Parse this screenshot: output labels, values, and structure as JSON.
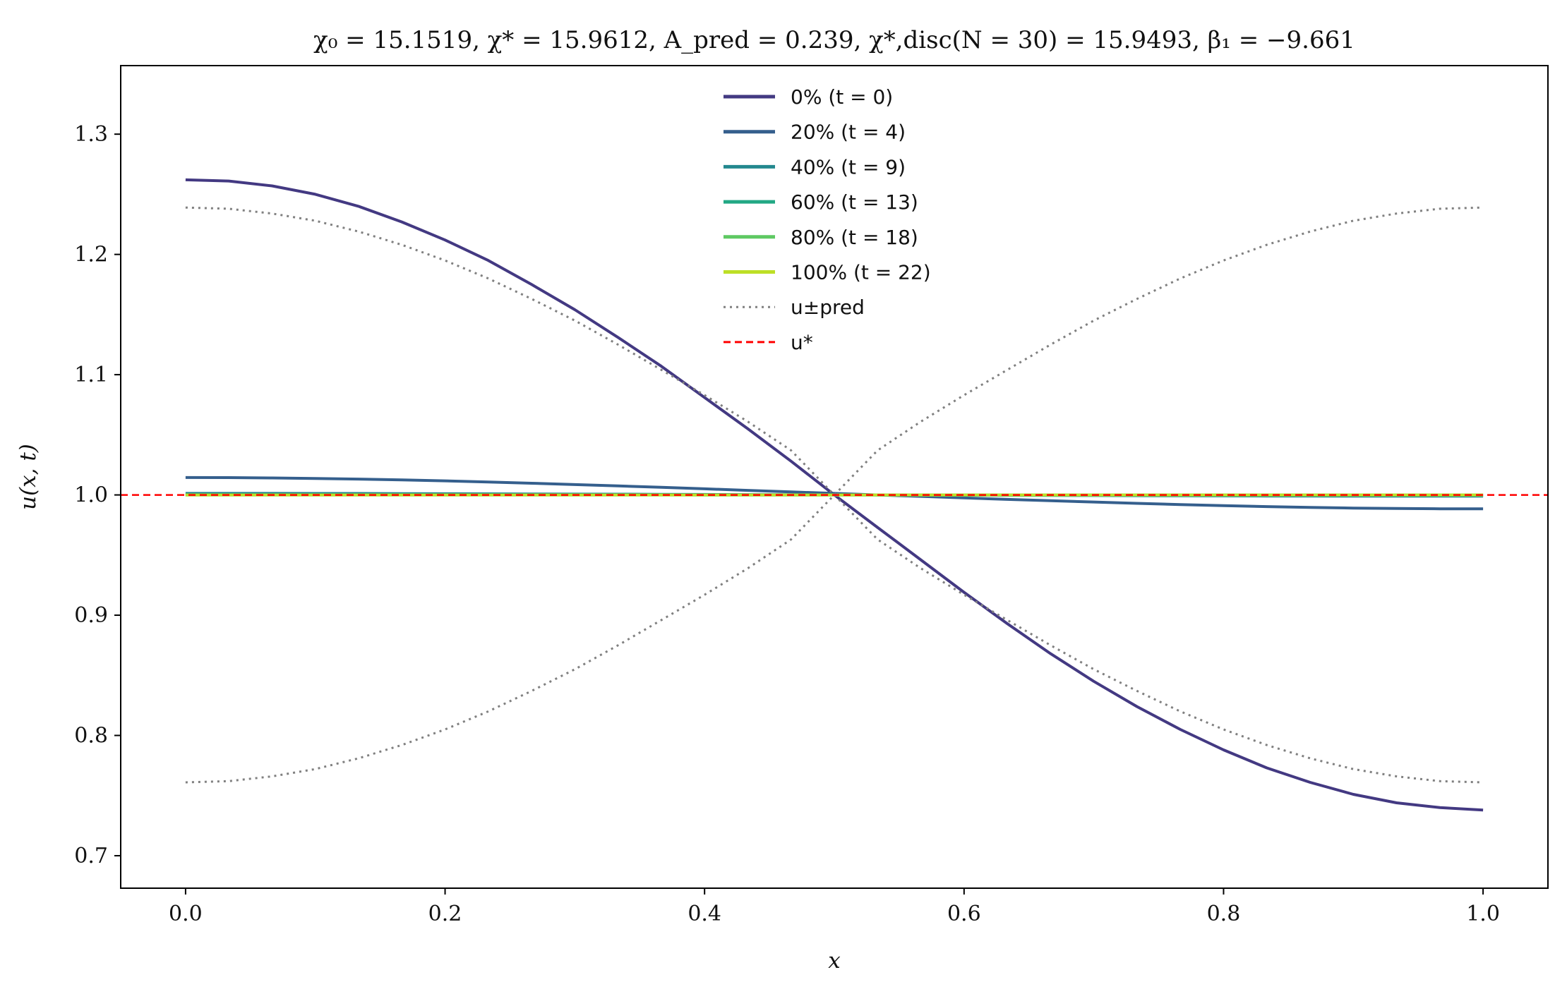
{
  "chart_data": {
    "type": "line",
    "title": "χ₀ = 15.1519,  χ* = 15.9612,  A_pred = 0.239,  χ*,disc(N = 30) = 15.9493,  β₁ = −9.661",
    "xlabel": "x",
    "ylabel": "u(x, t)",
    "xlim": [
      -0.05,
      1.05
    ],
    "ylim": [
      0.673,
      1.357
    ],
    "xticks": [
      0.0,
      0.2,
      0.4,
      0.6,
      0.8,
      1.0
    ],
    "xtick_labels": [
      "0.0",
      "0.2",
      "0.4",
      "0.6",
      "0.8",
      "1.0"
    ],
    "yticks": [
      0.7,
      0.8,
      0.9,
      1.0,
      1.1,
      1.2,
      1.3
    ],
    "ytick_labels": [
      "0.7",
      "0.8",
      "0.9",
      "1.0",
      "1.1",
      "1.2",
      "1.3"
    ],
    "grid": false,
    "legend_position": "top-center",
    "x": [
      0.0,
      0.0333,
      0.0667,
      0.1,
      0.1333,
      0.1667,
      0.2,
      0.2333,
      0.2667,
      0.3,
      0.3333,
      0.3667,
      0.4,
      0.4333,
      0.4667,
      0.5,
      0.5333,
      0.5667,
      0.6,
      0.6333,
      0.6667,
      0.7,
      0.7333,
      0.7667,
      0.8,
      0.8333,
      0.8667,
      0.9,
      0.9333,
      0.9667,
      1.0
    ],
    "series": [
      {
        "name": "0% (t = 0)",
        "style": "solid",
        "color": "#433982",
        "values": [
          1.262,
          1.261,
          1.257,
          1.25,
          1.24,
          1.227,
          1.212,
          1.195,
          1.175,
          1.154,
          1.131,
          1.107,
          1.081,
          1.055,
          1.028,
          1.0,
          0.973,
          0.946,
          0.919,
          0.893,
          0.868,
          0.845,
          0.824,
          0.805,
          0.788,
          0.773,
          0.761,
          0.751,
          0.744,
          0.74,
          0.738
        ]
      },
      {
        "name": "20% (t = 4)",
        "style": "solid",
        "color": "#355f8d",
        "values": [
          1.0145,
          1.0144,
          1.0141,
          1.0137,
          1.0132,
          1.0125,
          1.0117,
          1.0107,
          1.0097,
          1.0086,
          1.0075,
          1.0063,
          1.0051,
          1.0038,
          1.0025,
          1.0013,
          1.0,
          0.9988,
          0.9975,
          0.9963,
          0.9952,
          0.9941,
          0.993,
          0.992,
          0.9911,
          0.9903,
          0.9896,
          0.9891,
          0.9887,
          0.9885,
          0.9884
        ]
      },
      {
        "name": "40% (t = 9)",
        "style": "solid",
        "color": "#23888e",
        "values": [
          1.0013,
          1.0013,
          1.0013,
          1.0012,
          1.0012,
          1.0011,
          1.001,
          1.0009,
          1.0008,
          1.0007,
          1.0006,
          1.0005,
          1.0004,
          1.0003,
          1.0002,
          1.0001,
          1.0,
          0.9999,
          0.9998,
          0.9997,
          0.9996,
          0.9995,
          0.9994,
          0.9993,
          0.9992,
          0.9991,
          0.9991,
          0.999,
          0.999,
          0.999,
          0.999
        ]
      },
      {
        "name": "60% (t = 13)",
        "style": "solid",
        "color": "#22a884",
        "values": [
          1.0002,
          1.0002,
          1.0002,
          1.0002,
          1.0002,
          1.0002,
          1.0001,
          1.0001,
          1.0001,
          1.0001,
          1.0001,
          1.0001,
          1.0,
          1.0,
          1.0,
          1.0,
          1.0,
          1.0,
          1.0,
          1.0,
          0.9999,
          0.9999,
          0.9999,
          0.9999,
          0.9999,
          0.9999,
          0.9999,
          0.9998,
          0.9998,
          0.9998,
          0.9998
        ]
      },
      {
        "name": "80% (t = 18)",
        "style": "solid",
        "color": "#5ec962",
        "values": [
          1.0,
          1.0,
          1.0,
          1.0,
          1.0,
          1.0,
          1.0,
          1.0,
          1.0,
          1.0,
          1.0,
          1.0,
          1.0,
          1.0,
          1.0,
          1.0,
          1.0,
          1.0,
          1.0,
          1.0,
          1.0,
          1.0,
          1.0,
          1.0,
          1.0,
          1.0,
          1.0,
          1.0,
          1.0,
          1.0,
          1.0
        ]
      },
      {
        "name": "100% (t = 22)",
        "style": "solid",
        "color": "#bddf26",
        "values": [
          1.0,
          1.0,
          1.0,
          1.0,
          1.0,
          1.0,
          1.0,
          1.0,
          1.0,
          1.0,
          1.0,
          1.0,
          1.0,
          1.0,
          1.0,
          1.0,
          1.0,
          1.0,
          1.0,
          1.0,
          1.0,
          1.0,
          1.0,
          1.0,
          1.0,
          1.0,
          1.0,
          1.0,
          1.0,
          1.0,
          1.0
        ]
      },
      {
        "name": "u±pred",
        "style": "dotted",
        "color": "#808080",
        "values": [
          1.239,
          1.238,
          1.234,
          1.228,
          1.219,
          1.208,
          1.195,
          1.18,
          1.163,
          1.145,
          1.125,
          1.104,
          1.083,
          1.061,
          1.037,
          1.0,
          0.963,
          0.939,
          0.917,
          0.896,
          0.875,
          0.855,
          0.837,
          0.82,
          0.805,
          0.792,
          0.781,
          0.772,
          0.766,
          0.762,
          0.761
        ]
      },
      {
        "name": "",
        "style": "dotted",
        "color": "#808080",
        "values": [
          0.761,
          0.762,
          0.766,
          0.772,
          0.781,
          0.792,
          0.805,
          0.82,
          0.837,
          0.855,
          0.875,
          0.896,
          0.917,
          0.939,
          0.963,
          1.0,
          1.037,
          1.061,
          1.083,
          1.104,
          1.125,
          1.145,
          1.163,
          1.18,
          1.195,
          1.208,
          1.219,
          1.228,
          1.234,
          1.238,
          1.239
        ]
      }
    ],
    "reference_line": {
      "name": "u*",
      "y": 1.0,
      "style": "dashed",
      "color": "#ff0000"
    }
  }
}
